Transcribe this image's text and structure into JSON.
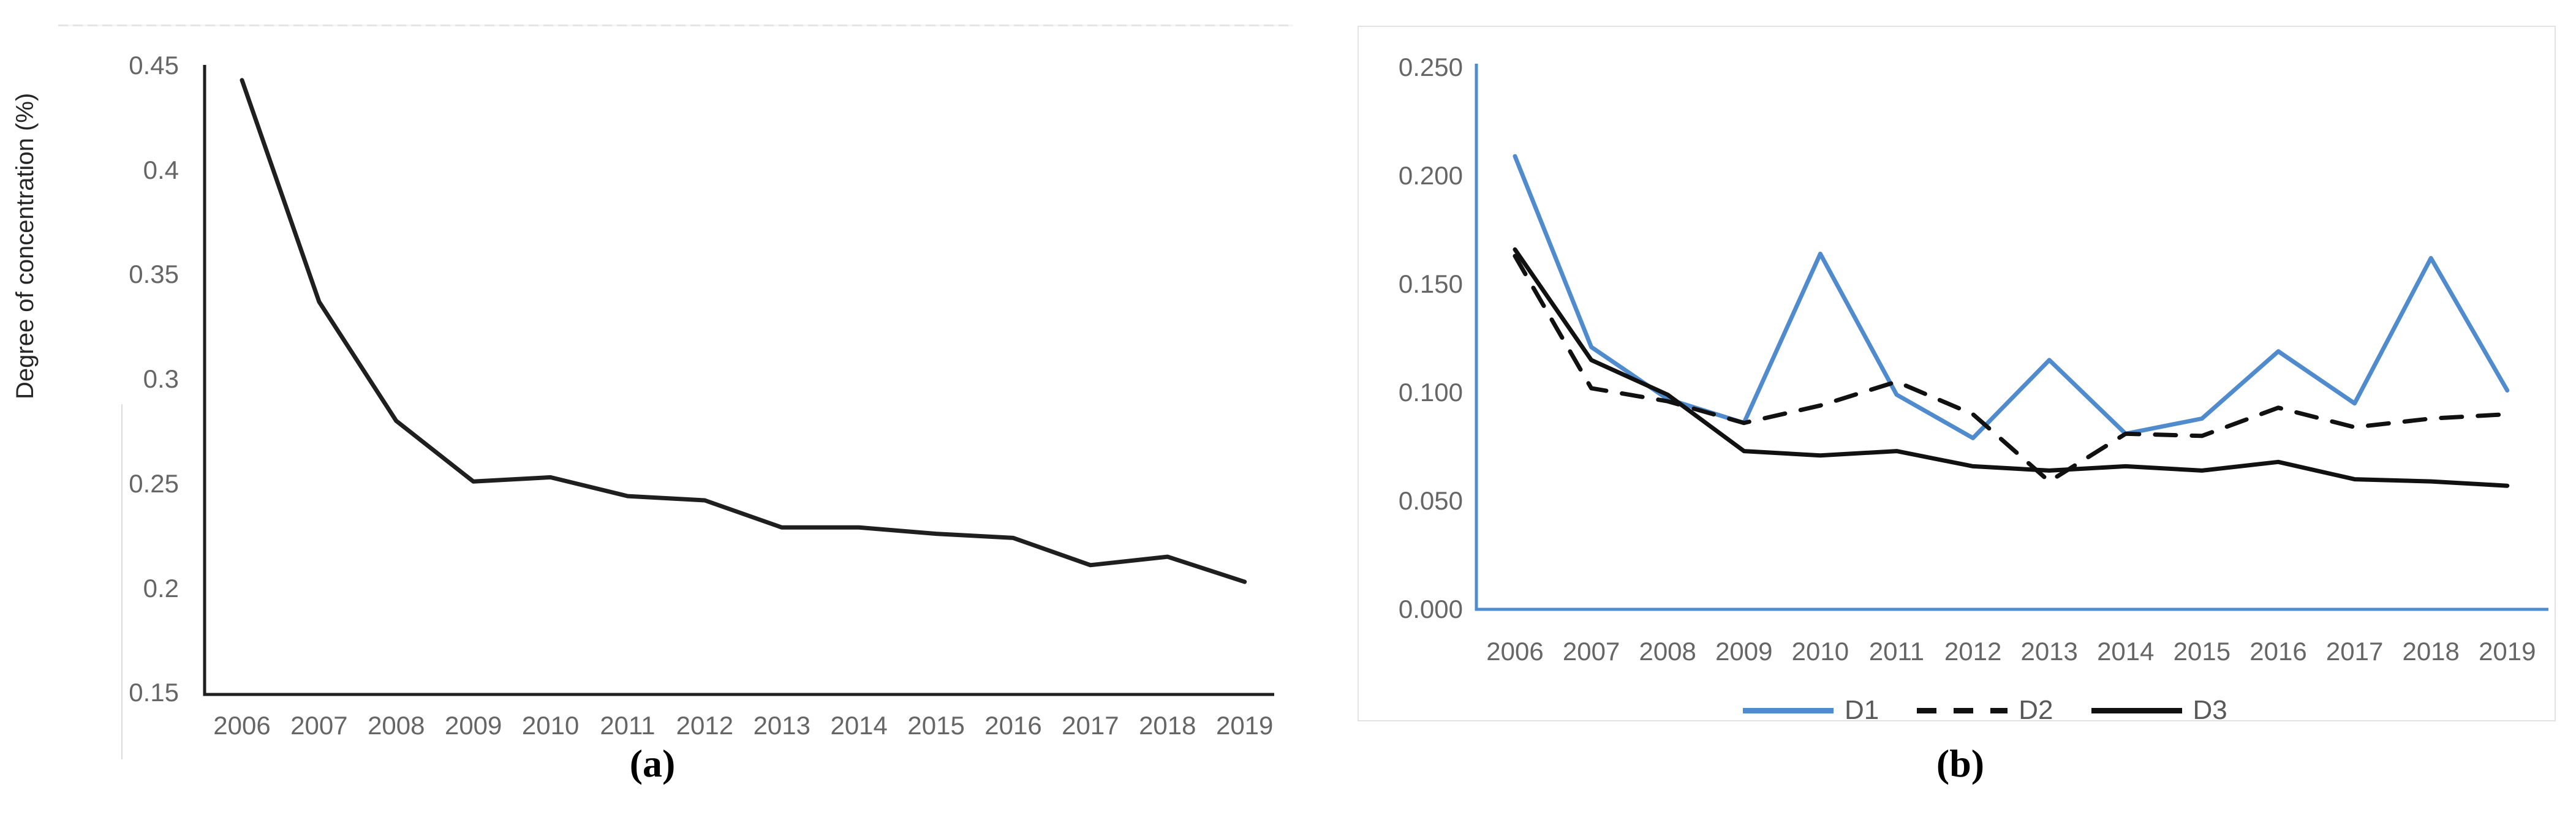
{
  "figure": {
    "background": "#ffffff",
    "panels": [
      {
        "id": "a",
        "caption": "(a)"
      },
      {
        "id": "b",
        "caption": "(b)"
      }
    ]
  },
  "colors": {
    "series_blue": "#508CCD",
    "series_black": "#111111",
    "axis_black": "#1f1f1f",
    "axis_blue": "#508CCD",
    "tick_text": "#666666",
    "legend_text": "#595959",
    "caption_text": "#000000",
    "panel_border": "#E2E2E2",
    "faint_line": "#E5E5E5"
  },
  "chart_data": [
    {
      "id": "a",
      "type": "line",
      "title": "",
      "xlabel": "",
      "ylabel": "Degree of concentration (%)",
      "caption": "(a)",
      "grid": false,
      "legend_position": "none",
      "categories": [
        "2006",
        "2007",
        "2008",
        "2009",
        "2010",
        "2011",
        "2012",
        "2013",
        "2014",
        "2015",
        "2016",
        "2017",
        "2018",
        "2019"
      ],
      "y_ticks": [
        "0.45",
        "0.4",
        "0.35",
        "0.3",
        "0.25",
        "0.2",
        "0.15"
      ],
      "ylim": [
        0.15,
        0.45
      ],
      "series": [
        {
          "name": "Degree of concentration",
          "color": "#1f1f1f",
          "style": "solid",
          "values": [
            0.443,
            0.337,
            0.28,
            0.251,
            0.253,
            0.244,
            0.242,
            0.229,
            0.229,
            0.226,
            0.224,
            0.211,
            0.215,
            0.203
          ]
        }
      ]
    },
    {
      "id": "b",
      "type": "line",
      "title": "",
      "xlabel": "",
      "ylabel": "",
      "caption": "(b)",
      "grid": false,
      "legend_position": "bottom",
      "categories": [
        "2006",
        "2007",
        "2008",
        "2009",
        "2010",
        "2011",
        "2012",
        "2013",
        "2014",
        "2015",
        "2016",
        "2017",
        "2018",
        "2019"
      ],
      "y_ticks": [
        "0.250",
        "0.200",
        "0.150",
        "0.100",
        "0.050",
        "0.000"
      ],
      "ylim": [
        0,
        0.25
      ],
      "series": [
        {
          "name": "D1",
          "color": "#508CCD",
          "style": "solid",
          "values": [
            0.209,
            0.121,
            0.097,
            0.086,
            0.164,
            0.099,
            0.079,
            0.115,
            0.081,
            0.088,
            0.119,
            0.095,
            0.162,
            0.101
          ]
        },
        {
          "name": "D2",
          "color": "#111111",
          "style": "dashed",
          "values": [
            0.163,
            0.102,
            0.096,
            0.086,
            0.094,
            0.105,
            0.09,
            0.059,
            0.081,
            0.08,
            0.093,
            0.084,
            0.088,
            0.09
          ]
        },
        {
          "name": "D3",
          "color": "#111111",
          "style": "solid",
          "values": [
            0.166,
            0.115,
            0.099,
            0.073,
            0.071,
            0.073,
            0.066,
            0.064,
            0.066,
            0.064,
            0.068,
            0.06,
            0.059,
            0.057
          ]
        }
      ]
    }
  ]
}
